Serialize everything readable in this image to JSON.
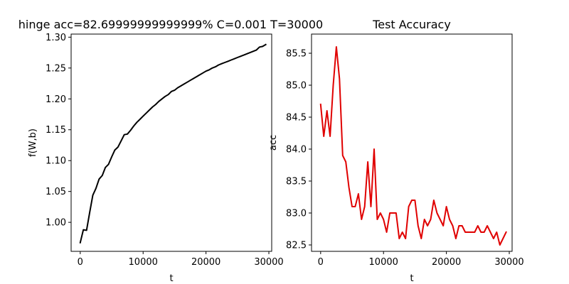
{
  "chart_data": [
    {
      "type": "line",
      "title": "hinge acc=82.69999999999999% C=0.001 T=30000",
      "xlabel": "t",
      "ylabel": "f(W,b)",
      "xlim": [
        -1450,
        30450
      ],
      "ylim": [
        0.953,
        1.305
      ],
      "xticks": [
        0,
        10000,
        20000,
        30000
      ],
      "yticks": [
        1.0,
        1.05,
        1.1,
        1.15,
        1.2,
        1.25,
        1.3
      ],
      "xtick_labels": [
        "0",
        "10000",
        "20000",
        "30000"
      ],
      "ytick_labels": [
        "1.00",
        "1.05",
        "1.10",
        "1.15",
        "1.20",
        "1.25",
        "1.30"
      ],
      "grid": false,
      "series": [
        {
          "color": "#000000",
          "x": [
            0,
            500,
            1000,
            1500,
            2000,
            2500,
            3000,
            3500,
            4000,
            4500,
            5000,
            5500,
            6000,
            6500,
            7000,
            7500,
            8000,
            8500,
            9000,
            9500,
            10000,
            10500,
            11000,
            11500,
            12000,
            12500,
            13000,
            13500,
            14000,
            14500,
            15000,
            15500,
            16000,
            16500,
            17000,
            17500,
            18000,
            18500,
            19000,
            19500,
            20000,
            20500,
            21000,
            21500,
            22000,
            22500,
            23000,
            23500,
            24000,
            24500,
            25000,
            25500,
            26000,
            26500,
            27000,
            27500,
            28000,
            28500,
            29000,
            29500
          ],
          "values": [
            0.967,
            0.988,
            0.987,
            1.016,
            1.044,
            1.055,
            1.07,
            1.076,
            1.089,
            1.094,
            1.106,
            1.117,
            1.122,
            1.132,
            1.142,
            1.143,
            1.149,
            1.156,
            1.162,
            1.167,
            1.172,
            1.177,
            1.182,
            1.187,
            1.191,
            1.196,
            1.2,
            1.204,
            1.207,
            1.212,
            1.214,
            1.218,
            1.221,
            1.224,
            1.227,
            1.23,
            1.233,
            1.236,
            1.239,
            1.242,
            1.245,
            1.247,
            1.25,
            1.252,
            1.255,
            1.257,
            1.259,
            1.261,
            1.263,
            1.265,
            1.267,
            1.269,
            1.271,
            1.273,
            1.275,
            1.277,
            1.279,
            1.284,
            1.285,
            1.288
          ]
        }
      ]
    },
    {
      "type": "line",
      "title": "Test Accuracy",
      "xlabel": "t",
      "ylabel": "acc",
      "xlim": [
        -1450,
        30450
      ],
      "ylim": [
        82.4,
        85.8
      ],
      "xticks": [
        0,
        10000,
        20000,
        30000
      ],
      "yticks": [
        82.5,
        83.0,
        83.5,
        84.0,
        84.5,
        85.0,
        85.5
      ],
      "xtick_labels": [
        "0",
        "10000",
        "20000",
        "30000"
      ],
      "ytick_labels": [
        "82.5",
        "83.0",
        "83.5",
        "84.0",
        "84.5",
        "85.0",
        "85.5"
      ],
      "grid": false,
      "series": [
        {
          "color": "#e00000",
          "x": [
            0,
            500,
            1000,
            1500,
            2000,
            2500,
            3000,
            3500,
            4000,
            4500,
            5000,
            5500,
            6000,
            6500,
            7000,
            7500,
            8000,
            8500,
            9000,
            9500,
            10000,
            10500,
            11000,
            11500,
            12000,
            12500,
            13000,
            13500,
            14000,
            14500,
            15000,
            15500,
            16000,
            16500,
            17000,
            17500,
            18000,
            18500,
            19000,
            19500,
            20000,
            20500,
            21000,
            21500,
            22000,
            22500,
            23000,
            23500,
            24000,
            24500,
            25000,
            25500,
            26000,
            26500,
            27000,
            27500,
            28000,
            28500,
            29000,
            29500
          ],
          "values": [
            84.7,
            84.2,
            84.6,
            84.2,
            85.0,
            85.6,
            85.1,
            83.9,
            83.8,
            83.4,
            83.1,
            83.1,
            83.3,
            82.9,
            83.1,
            83.8,
            83.1,
            84.0,
            82.9,
            83.0,
            82.9,
            82.7,
            83.0,
            83.0,
            83.0,
            82.6,
            82.7,
            82.6,
            83.1,
            83.2,
            83.2,
            82.8,
            82.6,
            82.9,
            82.8,
            82.9,
            83.2,
            83.0,
            82.9,
            82.8,
            83.1,
            82.9,
            82.8,
            82.6,
            82.8,
            82.8,
            82.7,
            82.7,
            82.7,
            82.7,
            82.8,
            82.7,
            82.7,
            82.8,
            82.7,
            82.6,
            82.7,
            82.5,
            82.6,
            82.7
          ]
        }
      ]
    }
  ]
}
